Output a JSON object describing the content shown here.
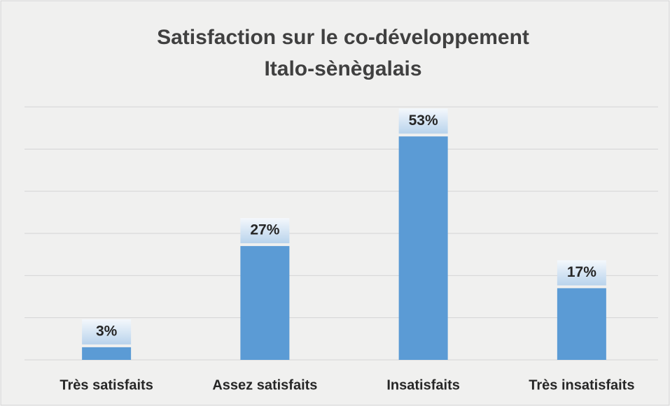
{
  "chart_data": {
    "type": "bar",
    "title": [
      "Satisfaction sur le co-développement",
      "Italo-sènègalais"
    ],
    "categories": [
      "Très satisfaits",
      "Assez satisfaits",
      "Insatisfaits",
      "Très insatisfaits"
    ],
    "values": [
      3,
      27,
      53,
      17
    ],
    "value_labels": [
      "3%",
      "27%",
      "53%",
      "17%"
    ],
    "color": "#5b9bd5",
    "ylim": [
      0,
      60
    ],
    "yticks": [
      0,
      10,
      20,
      30,
      40,
      50,
      60
    ],
    "grid": true
  }
}
